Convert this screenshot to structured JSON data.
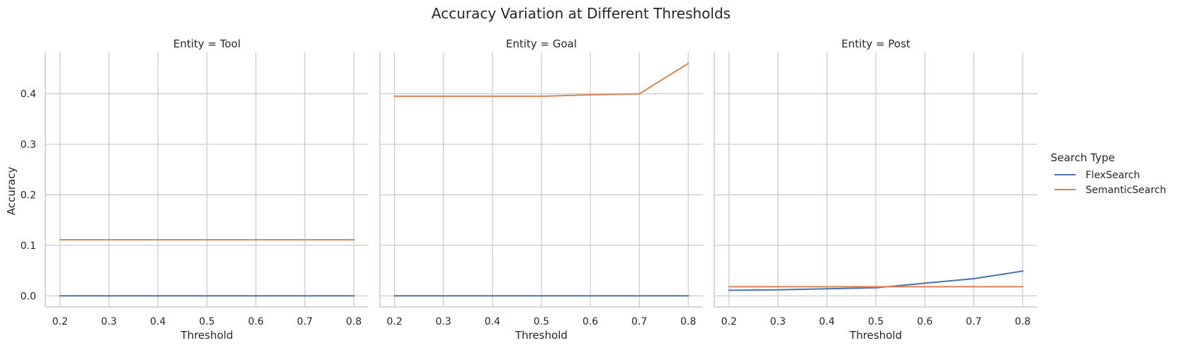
{
  "chart_data": {
    "type": "line",
    "title": "Accuracy Variation at Different Thresholds",
    "xlabel": "Threshold",
    "ylabel": "Accuracy",
    "x": [
      0.2,
      0.3,
      0.4,
      0.5,
      0.6,
      0.7,
      0.8
    ],
    "xlim": [
      0.17,
      0.83
    ],
    "ylim": [
      -0.022,
      0.482
    ],
    "xticks": [
      "0.2",
      "0.3",
      "0.4",
      "0.5",
      "0.6",
      "0.7",
      "0.8"
    ],
    "yticks": [
      "0.0",
      "0.1",
      "0.2",
      "0.3",
      "0.4"
    ],
    "grid": true,
    "legend": {
      "title": "Search Type",
      "placement": "right",
      "entries": [
        {
          "name": "FlexSearch",
          "color": "#4c72b0"
        },
        {
          "name": "SemanticSearch",
          "color": "#dd8452"
        }
      ]
    },
    "facets": [
      {
        "title": "Entity = Tool",
        "series": [
          {
            "name": "FlexSearch",
            "values": [
              0.0,
              0.0,
              0.0,
              0.0,
              0.0,
              0.0,
              0.0
            ]
          },
          {
            "name": "SemanticSearch",
            "values": [
              0.111,
              0.111,
              0.111,
              0.111,
              0.111,
              0.111,
              0.111
            ]
          }
        ]
      },
      {
        "title": "Entity = Goal",
        "series": [
          {
            "name": "FlexSearch",
            "values": [
              0.0,
              0.0,
              0.0,
              0.0,
              0.0,
              0.0,
              0.0
            ]
          },
          {
            "name": "SemanticSearch",
            "values": [
              0.395,
              0.395,
              0.395,
              0.395,
              0.398,
              0.4,
              0.46
            ]
          }
        ]
      },
      {
        "title": "Entity = Post",
        "series": [
          {
            "name": "FlexSearch",
            "values": [
              0.011,
              0.012,
              0.014,
              0.016,
              0.025,
              0.034,
              0.049
            ]
          },
          {
            "name": "SemanticSearch",
            "values": [
              0.018,
              0.018,
              0.018,
              0.018,
              0.018,
              0.018,
              0.018
            ]
          }
        ]
      }
    ]
  }
}
